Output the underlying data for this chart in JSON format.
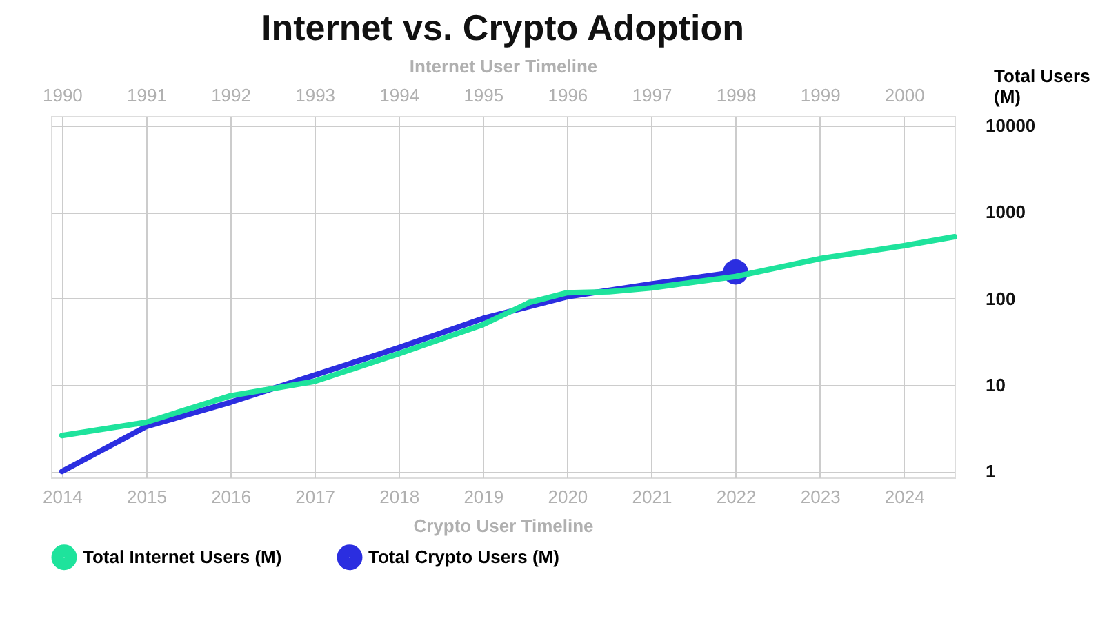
{
  "chart_data": {
    "type": "line",
    "title": "Internet vs. Crypto Adoption",
    "xlabel": "Crypto User Timeline",
    "x2label": "Internet User Timeline",
    "ylabel": "Total Users (M)",
    "xlim": [
      2013.87,
      2024.6
    ],
    "xticks": [
      2014,
      2015,
      2016,
      2017,
      2018,
      2019,
      2020,
      2021,
      2022,
      2023,
      2024
    ],
    "x2lim": [
      1989.87,
      2000.6
    ],
    "x2ticks": [
      1990,
      1991,
      1992,
      1993,
      1994,
      1995,
      1996,
      1997,
      1998,
      1999,
      2000
    ],
    "ylim": [
      0.85,
      13000
    ],
    "yticks": [
      1,
      10,
      100,
      1000,
      10000
    ],
    "log": true,
    "grid": true,
    "legend": "bottom",
    "line_style": "solid",
    "series": [
      {
        "name": "Total Internet Users (M)",
        "color": "#1ee39c",
        "axis": "x2",
        "x": [
          1990,
          1991,
          1992,
          1993,
          1994,
          1995,
          1995.55,
          1996,
          1996.5,
          1997,
          1998,
          1999,
          2000,
          2000.6
        ],
        "values": [
          2.6,
          3.7,
          7.5,
          11,
          23,
          50,
          90,
          117,
          120,
          133,
          180,
          290,
          410,
          520
        ]
      },
      {
        "name": "Total Crypto Users (M)",
        "color": "#2b2ee0",
        "x": [
          2014,
          2015,
          2016,
          2017,
          2018,
          2019,
          2020,
          2021,
          2022
        ],
        "values": [
          1,
          3.3,
          6.3,
          13,
          27,
          59,
          105,
          148,
          203
        ]
      },
      {
        "type": "scatter",
        "color": "#2b2ee0",
        "marker": "circle",
        "x": [
          2022
        ],
        "values": [
          203
        ]
      }
    ]
  }
}
